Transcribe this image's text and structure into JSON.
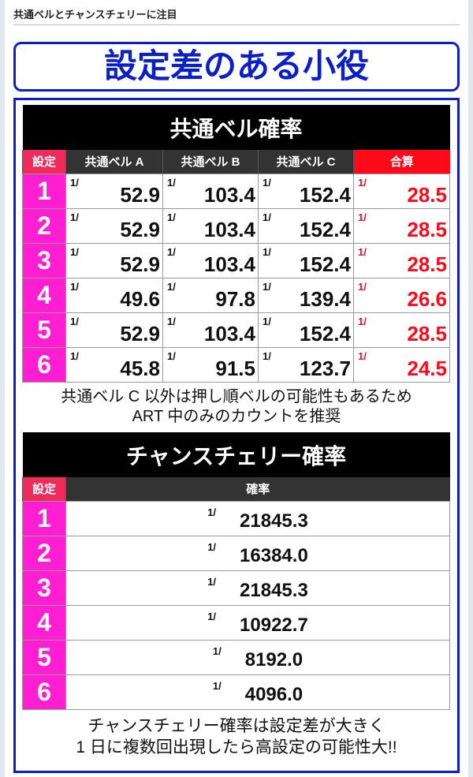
{
  "breadcrumb": "共通ベルとチャンスチェリーに注目",
  "title": "設定差のある小役",
  "bell": {
    "title": "共通ベル確率",
    "headers": [
      "設定",
      "共通ベル A",
      "共通ベル B",
      "共通ベル C",
      "合算"
    ],
    "prefix": "1/",
    "rows": [
      [
        "1",
        "52.9",
        "103.4",
        "152.4",
        "28.5"
      ],
      [
        "2",
        "52.9",
        "103.4",
        "152.4",
        "28.5"
      ],
      [
        "3",
        "52.9",
        "103.4",
        "152.4",
        "28.5"
      ],
      [
        "4",
        "49.6",
        "97.8",
        "139.4",
        "26.6"
      ],
      [
        "5",
        "52.9",
        "103.4",
        "152.4",
        "28.5"
      ],
      [
        "6",
        "45.8",
        "91.5",
        "123.7",
        "24.5"
      ]
    ],
    "note1": "共通ベル C 以外は押し順ベルの可能性もあるため",
    "note2": "ART 中のみのカウントを推奨"
  },
  "cherry": {
    "title": "チャンスチェリー確率",
    "headers": [
      "設定",
      "確率"
    ],
    "prefix": "1/",
    "rows": [
      [
        "1",
        "21845.3"
      ],
      [
        "2",
        "16384.0"
      ],
      [
        "3",
        "21845.3"
      ],
      [
        "4",
        "10922.7"
      ],
      [
        "5",
        "8192.0"
      ],
      [
        "6",
        "4096.0"
      ]
    ],
    "note1": "チャンスチェリー確率は設定差が大きく",
    "note2": "1 日に複数回出現したら高設定の可能性大!!"
  },
  "colors": {
    "accent": "#0a1fc8",
    "setting": "#ff1ed2",
    "total": "#ff0a1a"
  }
}
